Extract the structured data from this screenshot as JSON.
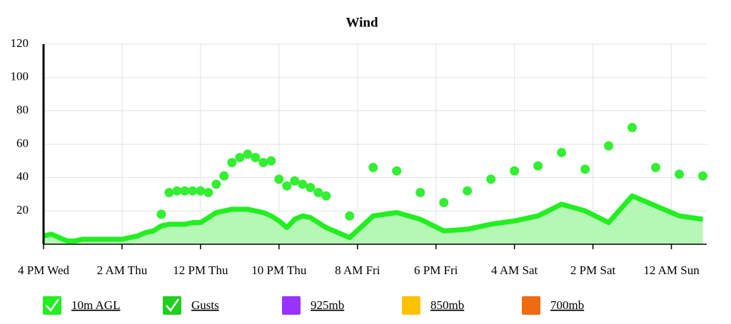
{
  "chart_data": {
    "type": "line",
    "title": "Wind",
    "x": [
      0,
      1,
      2,
      3,
      4,
      5,
      6,
      7,
      8,
      9,
      10,
      11,
      12,
      13,
      14,
      15,
      16,
      17,
      18,
      19,
      20,
      21,
      22,
      23,
      24,
      25,
      26,
      27,
      28,
      29,
      30,
      31,
      32,
      33,
      34,
      35,
      36,
      39,
      42,
      45,
      48,
      51,
      54,
      57,
      60,
      63,
      66,
      69,
      72,
      75,
      78,
      81,
      84
    ],
    "xlim": [
      0,
      84.5
    ],
    "xticks": [
      {
        "value": 0,
        "label": "4 PM Wed"
      },
      {
        "value": 10,
        "label": "2 AM Thu"
      },
      {
        "value": 20,
        "label": "12 PM Thu"
      },
      {
        "value": 30,
        "label": "10 PM Thu"
      },
      {
        "value": 40,
        "label": "8 AM Fri"
      },
      {
        "value": 50,
        "label": "6 PM Fri"
      },
      {
        "value": 60,
        "label": "4 AM Sat"
      },
      {
        "value": 70,
        "label": "2 PM Sat"
      },
      {
        "value": 80,
        "label": "12 AM Sun"
      }
    ],
    "ylim": [
      0,
      120
    ],
    "yticks": [
      20,
      40,
      60,
      80,
      100,
      120
    ],
    "grid": true,
    "series": [
      {
        "name": "10m AGL",
        "color": "#22ee22",
        "checked": true,
        "values": [
          5,
          6,
          4,
          2,
          2,
          3,
          3,
          3,
          3,
          3,
          3,
          4,
          5,
          7,
          8,
          11,
          12,
          12,
          12,
          13,
          13,
          16,
          19,
          20,
          21,
          21,
          21,
          20,
          19,
          17,
          14,
          10,
          15,
          17,
          16,
          13,
          10,
          4,
          17,
          19,
          15,
          8,
          9,
          12,
          14,
          17,
          24,
          20,
          13,
          29,
          23,
          17,
          15
        ]
      },
      {
        "name": "Gusts",
        "color": "#1fcf1f",
        "dot_color": "#33ee33",
        "checked": true,
        "values": [
          null,
          null,
          null,
          null,
          null,
          null,
          null,
          null,
          null,
          null,
          null,
          null,
          null,
          null,
          null,
          18,
          31,
          32,
          32,
          32,
          32,
          31,
          36,
          41,
          49,
          52,
          54,
          52,
          49,
          50,
          39,
          35,
          38,
          36,
          34,
          31,
          29,
          17,
          46,
          44,
          31,
          25,
          32,
          39,
          44,
          47,
          55,
          45,
          59,
          70,
          46,
          42,
          41
        ]
      },
      {
        "name": "925mb",
        "color": "#9933ff",
        "checked": false
      },
      {
        "name": "850mb",
        "color": "#ffc200",
        "checked": false
      },
      {
        "name": "700mb",
        "color": "#f06a10",
        "checked": false
      }
    ]
  }
}
